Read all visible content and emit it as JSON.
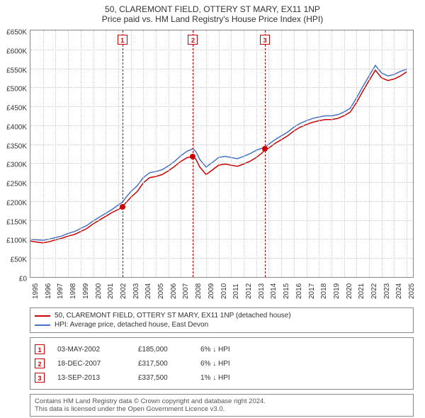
{
  "title_line1": "50, CLAREMONT FIELD, OTTERY ST MARY, EX11 1NP",
  "title_line2": "Price paid vs. HM Land Registry's House Price Index (HPI)",
  "chart": {
    "type": "line",
    "background_color": "#ffffff",
    "grid_color": "#cccccc",
    "border_color": "#888888",
    "ylim": [
      0,
      650000
    ],
    "ytick_step": 50000,
    "yticks_labels": [
      "£0",
      "£50K",
      "£100K",
      "£150K",
      "£200K",
      "£250K",
      "£300K",
      "£350K",
      "£400K",
      "£450K",
      "£500K",
      "£550K",
      "£600K",
      "£650K"
    ],
    "xlim": [
      1995,
      2025.5
    ],
    "xticks": [
      1995,
      1996,
      1997,
      1998,
      1999,
      2000,
      2001,
      2002,
      2003,
      2004,
      2005,
      2006,
      2007,
      2008,
      2009,
      2010,
      2011,
      2012,
      2013,
      2014,
      2015,
      2016,
      2017,
      2018,
      2019,
      2020,
      2021,
      2022,
      2023,
      2024,
      2025
    ],
    "label_fontsize": 10,
    "series": [
      {
        "name": "property",
        "legend": "50, CLAREMONT FIELD, OTTERY ST MARY, EX11 1NP (detached house)",
        "color": "#cc0000",
        "line_width": 1.5,
        "points": [
          [
            1995.0,
            95000
          ],
          [
            1995.5,
            92000
          ],
          [
            1996.0,
            90000
          ],
          [
            1996.5,
            93000
          ],
          [
            1997.0,
            98000
          ],
          [
            1997.5,
            102000
          ],
          [
            1998.0,
            108000
          ],
          [
            1998.5,
            112000
          ],
          [
            1999.0,
            120000
          ],
          [
            1999.5,
            128000
          ],
          [
            2000.0,
            140000
          ],
          [
            2000.5,
            150000
          ],
          [
            2001.0,
            160000
          ],
          [
            2001.5,
            170000
          ],
          [
            2002.0,
            178000
          ],
          [
            2002.33,
            185000
          ],
          [
            2002.5,
            192000
          ],
          [
            2003.0,
            210000
          ],
          [
            2003.5,
            225000
          ],
          [
            2004.0,
            248000
          ],
          [
            2004.5,
            262000
          ],
          [
            2005.0,
            265000
          ],
          [
            2005.5,
            270000
          ],
          [
            2006.0,
            280000
          ],
          [
            2006.5,
            292000
          ],
          [
            2007.0,
            305000
          ],
          [
            2007.5,
            315000
          ],
          [
            2007.96,
            317500
          ],
          [
            2008.2,
            310000
          ],
          [
            2008.5,
            290000
          ],
          [
            2009.0,
            270000
          ],
          [
            2009.5,
            282000
          ],
          [
            2010.0,
            295000
          ],
          [
            2010.5,
            298000
          ],
          [
            2011.0,
            295000
          ],
          [
            2011.5,
            292000
          ],
          [
            2012.0,
            298000
          ],
          [
            2012.5,
            305000
          ],
          [
            2013.0,
            315000
          ],
          [
            2013.5,
            328000
          ],
          [
            2013.7,
            337500
          ],
          [
            2014.0,
            340000
          ],
          [
            2014.5,
            352000
          ],
          [
            2015.0,
            362000
          ],
          [
            2015.5,
            372000
          ],
          [
            2016.0,
            385000
          ],
          [
            2016.5,
            395000
          ],
          [
            2017.0,
            402000
          ],
          [
            2017.5,
            408000
          ],
          [
            2018.0,
            412000
          ],
          [
            2018.5,
            415000
          ],
          [
            2019.0,
            415000
          ],
          [
            2019.5,
            418000
          ],
          [
            2020.0,
            425000
          ],
          [
            2020.5,
            435000
          ],
          [
            2021.0,
            460000
          ],
          [
            2021.5,
            490000
          ],
          [
            2022.0,
            518000
          ],
          [
            2022.5,
            545000
          ],
          [
            2023.0,
            525000
          ],
          [
            2023.5,
            518000
          ],
          [
            2024.0,
            522000
          ],
          [
            2024.5,
            530000
          ],
          [
            2025.0,
            541000
          ]
        ]
      },
      {
        "name": "hpi",
        "legend": "HPI: Average price, detached house, East Devon",
        "color": "#4472c4",
        "line_width": 1.5,
        "points": [
          [
            1995.0,
            100000
          ],
          [
            1995.5,
            98000
          ],
          [
            1996.0,
            97000
          ],
          [
            1996.5,
            100000
          ],
          [
            1997.0,
            104000
          ],
          [
            1997.5,
            108000
          ],
          [
            1998.0,
            115000
          ],
          [
            1998.5,
            120000
          ],
          [
            1999.0,
            128000
          ],
          [
            1999.5,
            136000
          ],
          [
            2000.0,
            148000
          ],
          [
            2000.5,
            158000
          ],
          [
            2001.0,
            168000
          ],
          [
            2001.5,
            178000
          ],
          [
            2002.0,
            190000
          ],
          [
            2002.33,
            197000
          ],
          [
            2002.5,
            205000
          ],
          [
            2003.0,
            225000
          ],
          [
            2003.5,
            240000
          ],
          [
            2004.0,
            262000
          ],
          [
            2004.5,
            275000
          ],
          [
            2005.0,
            278000
          ],
          [
            2005.5,
            283000
          ],
          [
            2006.0,
            293000
          ],
          [
            2006.5,
            305000
          ],
          [
            2007.0,
            320000
          ],
          [
            2007.5,
            332000
          ],
          [
            2007.96,
            338000
          ],
          [
            2008.2,
            330000
          ],
          [
            2008.5,
            310000
          ],
          [
            2009.0,
            290000
          ],
          [
            2009.5,
            302000
          ],
          [
            2010.0,
            315000
          ],
          [
            2010.5,
            318000
          ],
          [
            2011.0,
            315000
          ],
          [
            2011.5,
            312000
          ],
          [
            2012.0,
            318000
          ],
          [
            2012.5,
            325000
          ],
          [
            2013.0,
            334000
          ],
          [
            2013.5,
            340000
          ],
          [
            2013.7,
            342000
          ],
          [
            2014.0,
            350000
          ],
          [
            2014.5,
            362000
          ],
          [
            2015.0,
            372000
          ],
          [
            2015.5,
            382000
          ],
          [
            2016.0,
            395000
          ],
          [
            2016.5,
            405000
          ],
          [
            2017.0,
            412000
          ],
          [
            2017.5,
            418000
          ],
          [
            2018.0,
            422000
          ],
          [
            2018.5,
            425000
          ],
          [
            2019.0,
            425000
          ],
          [
            2019.5,
            428000
          ],
          [
            2020.0,
            435000
          ],
          [
            2020.5,
            445000
          ],
          [
            2021.0,
            472000
          ],
          [
            2021.5,
            502000
          ],
          [
            2022.0,
            530000
          ],
          [
            2022.5,
            558000
          ],
          [
            2023.0,
            538000
          ],
          [
            2023.5,
            530000
          ],
          [
            2024.0,
            534000
          ],
          [
            2024.5,
            542000
          ],
          [
            2025.0,
            548000
          ]
        ]
      }
    ],
    "markers": [
      {
        "id": "1",
        "x": 2002.33,
        "y": 185000,
        "color": "#cc0000"
      },
      {
        "id": "2",
        "x": 2007.96,
        "y": 317500,
        "color": "#cc0000"
      },
      {
        "id": "3",
        "x": 2013.7,
        "y": 337500,
        "color": "#cc0000"
      }
    ]
  },
  "legend_items": [
    {
      "color": "#cc0000",
      "text": "50, CLAREMONT FIELD, OTTERY ST MARY, EX11 1NP (detached house)"
    },
    {
      "color": "#4472c4",
      "text": "HPI: Average price, detached house, East Devon"
    }
  ],
  "transactions": [
    {
      "id": "1",
      "date": "03-MAY-2002",
      "price": "£185,000",
      "delta": "6% ↓ HPI",
      "color": "#cc0000"
    },
    {
      "id": "2",
      "date": "18-DEC-2007",
      "price": "£317,500",
      "delta": "6% ↓ HPI",
      "color": "#cc0000"
    },
    {
      "id": "3",
      "date": "13-SEP-2013",
      "price": "£337,500",
      "delta": "1% ↓ HPI",
      "color": "#cc0000"
    }
  ],
  "footer_line1": "Contains HM Land Registry data © Crown copyright and database right 2024.",
  "footer_line2": "This data is licensed under the Open Government Licence v3.0."
}
